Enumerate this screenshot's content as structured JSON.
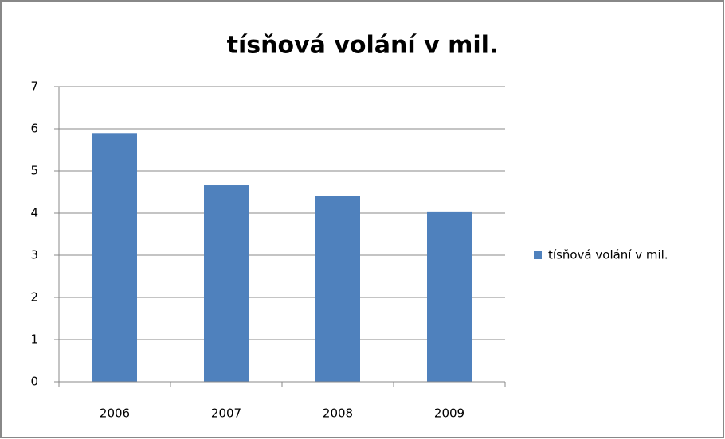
{
  "chart_data": {
    "type": "bar",
    "title": "tísňová volání v mil.",
    "categories": [
      "2006",
      "2007",
      "2008",
      "2009"
    ],
    "series": [
      {
        "name": "tísňová volání v mil.",
        "color": "#4f81bd",
        "values": [
          5.9,
          4.66,
          4.4,
          4.04
        ]
      }
    ],
    "ylim": [
      0,
      7
    ],
    "yticks": [
      0,
      1,
      2,
      3,
      4,
      5,
      6,
      7
    ],
    "grid": true,
    "legend": "right"
  }
}
